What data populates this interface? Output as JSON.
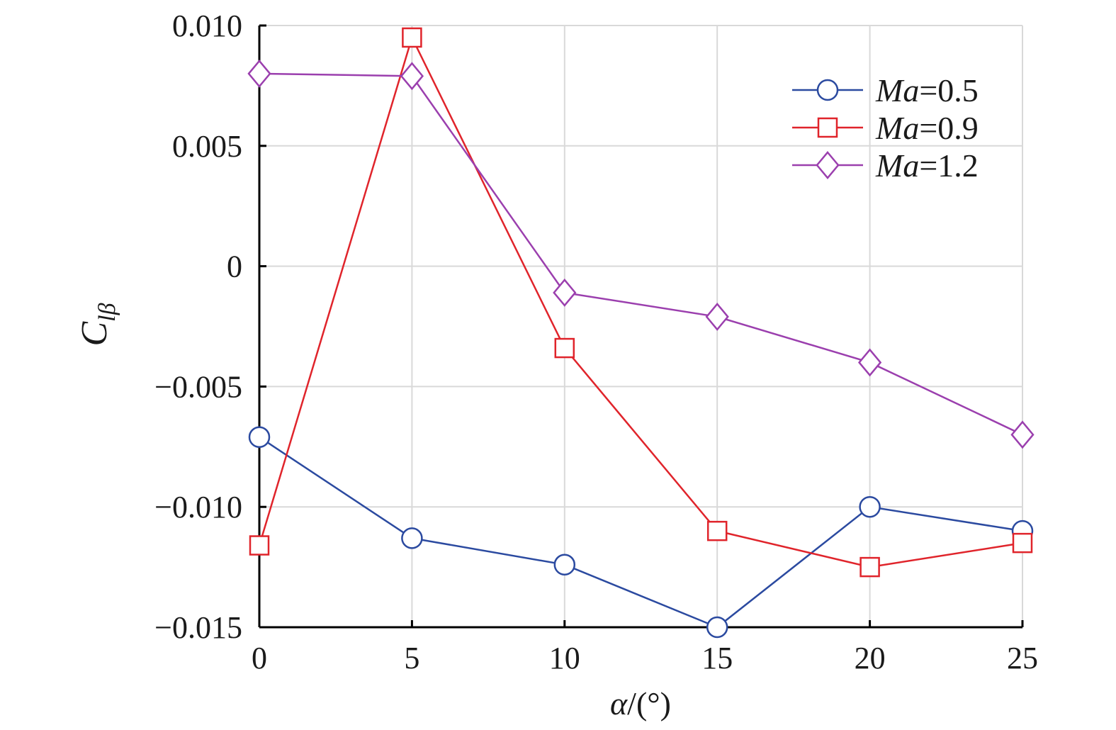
{
  "chart_data": {
    "type": "line",
    "x": [
      0,
      5,
      10,
      15,
      20,
      25
    ],
    "xlim": [
      0,
      25
    ],
    "ylim": [
      -0.015,
      0.01
    ],
    "xticks": [
      "0",
      "5",
      "10",
      "15",
      "20",
      "25"
    ],
    "yticks": [
      "0.010",
      "0.005",
      "0",
      "−0.005",
      "−0.010",
      "−0.015"
    ],
    "ytick_values": [
      0.01,
      0.005,
      0,
      -0.005,
      -0.01,
      -0.015
    ],
    "xlabel": {
      "symbol": "α",
      "unit": "/(°)"
    },
    "ylabel": {
      "symbol": "C",
      "subscript": "lβ"
    },
    "grid": true,
    "legend_position": "top-right",
    "series": [
      {
        "name_symbol": "Ma",
        "name_value": "=0.5",
        "color": "#2b4aa0",
        "marker": "circle",
        "values": [
          -0.0071,
          -0.0113,
          -0.0124,
          -0.015,
          -0.01,
          -0.011
        ]
      },
      {
        "name_symbol": "Ma",
        "name_value": "=0.9",
        "color": "#e0242b",
        "marker": "square",
        "values": [
          -0.0116,
          0.0095,
          -0.0034,
          -0.011,
          -0.0125,
          -0.0115
        ]
      },
      {
        "name_symbol": "Ma",
        "name_value": "=1.2",
        "color": "#9b3fae",
        "marker": "diamond",
        "values": [
          0.008,
          0.0079,
          -0.0011,
          -0.0021,
          -0.004,
          -0.007
        ]
      }
    ]
  }
}
